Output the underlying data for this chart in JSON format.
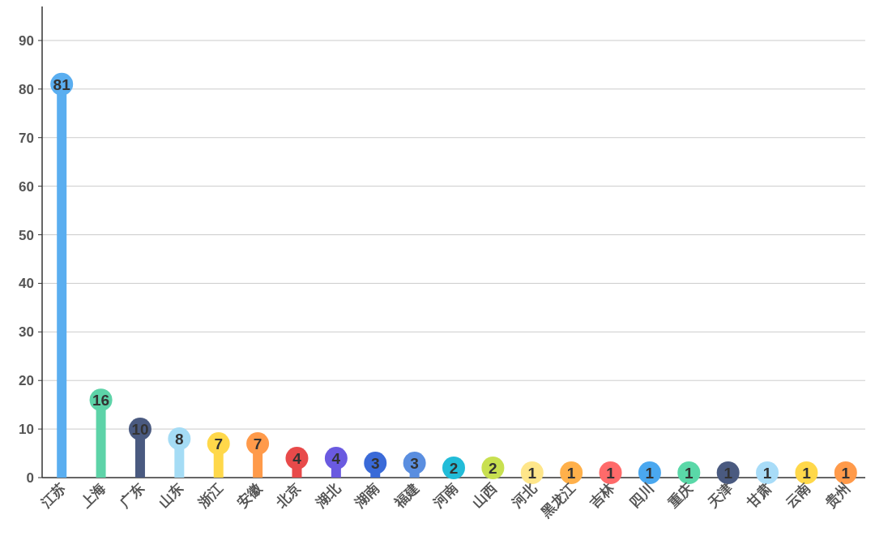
{
  "chart_data": {
    "type": "lollipop",
    "categories": [
      "江苏",
      "上海",
      "广东",
      "山东",
      "浙江",
      "安徽",
      "北京",
      "湖北",
      "湖南",
      "福建",
      "河南",
      "山西",
      "河北",
      "黑龙江",
      "吉林",
      "四川",
      "重庆",
      "天津",
      "甘肃",
      "云南",
      "贵州"
    ],
    "values": [
      81,
      16,
      10,
      8,
      7,
      7,
      4,
      4,
      3,
      3,
      2,
      2,
      1,
      1,
      1,
      1,
      1,
      1,
      1,
      1,
      1
    ],
    "colors": [
      "#5aaef0",
      "#5dd3a8",
      "#4a5a80",
      "#a5dcf5",
      "#ffd84a",
      "#ff9a4a",
      "#e84a4a",
      "#6a5ae0",
      "#3a6ad8",
      "#5a8ee0",
      "#22bcd8",
      "#c8e050",
      "#ffe68a",
      "#ffb04a",
      "#ff6a6a",
      "#4aa8f0",
      "#5ad8a8",
      "#4a5a80",
      "#a8dcf8",
      "#ffd84a",
      "#ff9a4a"
    ],
    "ylim": [
      0,
      97
    ],
    "yticks": [
      0,
      10,
      20,
      30,
      40,
      50,
      60,
      70,
      80,
      90
    ],
    "grid": "y",
    "data_labels": true
  }
}
